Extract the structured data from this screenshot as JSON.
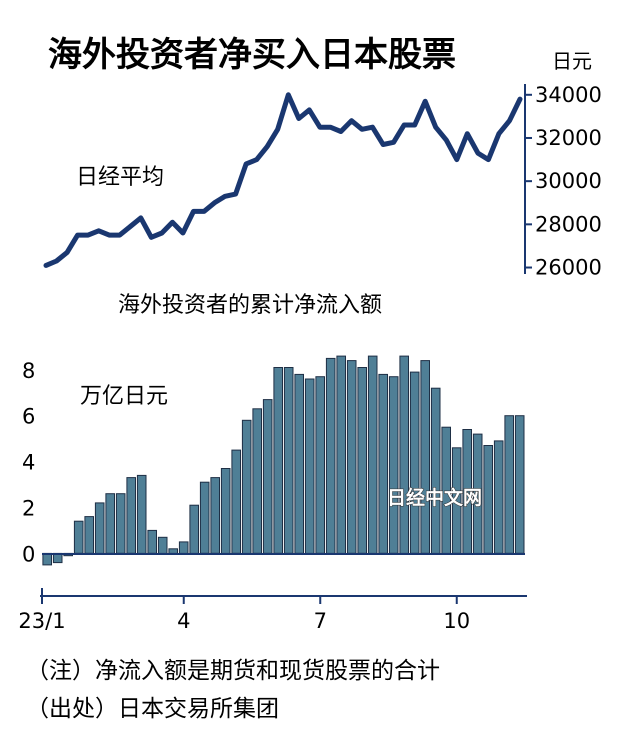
{
  "title": "海外投资者净买入日本股票",
  "watermark": "日经中文网",
  "notes": [
    "（注）净流入额是期货和现货股票的合计",
    "（出处）日本交易所集团"
  ],
  "chart_data": [
    {
      "type": "line",
      "series": [
        {
          "name": "日经平均",
          "values": [
            26100,
            26300,
            26700,
            27500,
            27500,
            27700,
            27500,
            27500,
            27900,
            28300,
            27400,
            27600,
            28100,
            27600,
            28600,
            28600,
            29000,
            29300,
            29400,
            30800,
            31000,
            31600,
            32400,
            34000,
            32900,
            33300,
            32500,
            32500,
            32300,
            32800,
            32400,
            32500,
            31700,
            31800,
            32600,
            32600,
            33700,
            32500,
            31900,
            31000,
            32200,
            31300,
            31000,
            32200,
            32800,
            33800
          ]
        }
      ],
      "unit": "日元",
      "yticks": [
        26000,
        28000,
        30000,
        32000,
        34000
      ],
      "ylim": [
        25700,
        34500
      ],
      "color": "#1a3770"
    },
    {
      "type": "bar",
      "title": "海外投资者的累计净流入额",
      "unit": "万亿日元",
      "values": [
        -0.5,
        -0.4,
        -0.1,
        1.4,
        1.6,
        2.2,
        2.6,
        2.6,
        3.3,
        3.4,
        1.0,
        0.7,
        0.2,
        0.5,
        2.1,
        3.1,
        3.3,
        3.7,
        4.5,
        5.8,
        6.3,
        6.7,
        8.1,
        8.1,
        7.8,
        7.6,
        7.7,
        8.5,
        8.6,
        8.4,
        8.1,
        8.6,
        7.8,
        7.7,
        8.6,
        7.9,
        8.4,
        7.2,
        5.5,
        4.6,
        5.4,
        5.2,
        4.7,
        4.9,
        6.0,
        6.0
      ],
      "yticks": [
        "0",
        "2",
        "4",
        "6",
        "8"
      ],
      "ylim": [
        -0.9,
        9.3
      ],
      "xticks": [
        {
          "label": "23/1",
          "index": 0
        },
        {
          "label": "4",
          "index": 13
        },
        {
          "label": "7",
          "index": 26
        },
        {
          "label": "10",
          "index": 39
        }
      ],
      "bar_color": "#4f7f96",
      "color": "#1a3770"
    }
  ]
}
